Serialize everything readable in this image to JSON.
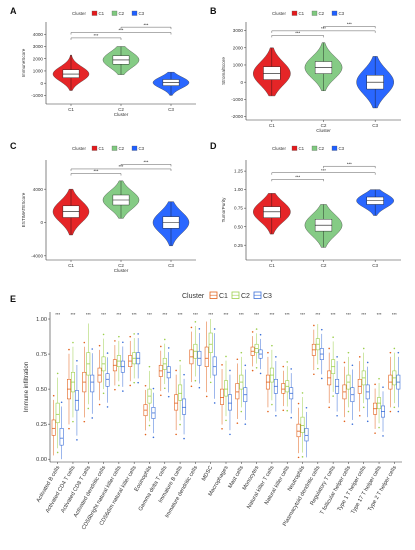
{
  "colors": {
    "C1": "#e41a1c",
    "C2": "#7fc97f",
    "C3": "#1f5fff",
    "C1_box": "#e2611b",
    "C2_box": "#9ccf4d",
    "C3_box": "#3b6fd8"
  },
  "chart_data": [
    {
      "panel": "A",
      "type": "violin",
      "legend_title": "Cluster",
      "legend_items": [
        "C1",
        "C2",
        "C3"
      ],
      "categories": [
        "C1",
        "C2",
        "C3"
      ],
      "xlabel": "Cluster",
      "ylabel": "ImmuneScore",
      "ylim": [
        -1700,
        5000
      ],
      "yticks": [
        -1000,
        0,
        1000,
        2000,
        3000,
        4000
      ],
      "series": [
        {
          "name": "C1",
          "median": 750,
          "q1": 450,
          "q3": 1100,
          "min": -600,
          "max": 2300
        },
        {
          "name": "C2",
          "median": 1900,
          "q1": 1550,
          "q3": 2250,
          "min": 700,
          "max": 3000
        },
        {
          "name": "C3",
          "median": 50,
          "q1": -200,
          "q3": 300,
          "min": -1000,
          "max": 900
        }
      ],
      "significance": [
        {
          "from": 0,
          "to": 1,
          "label": "***"
        },
        {
          "from": 0,
          "to": 2,
          "label": "***"
        },
        {
          "from": 1,
          "to": 2,
          "label": "***"
        }
      ]
    },
    {
      "panel": "B",
      "type": "violin",
      "legend_title": "Cluster",
      "legend_items": [
        "C1",
        "C2",
        "C3"
      ],
      "categories": [
        "C1",
        "C2",
        "C3"
      ],
      "xlabel": "Cluster",
      "ylabel": "StromalScore",
      "ylim": [
        -2200,
        3500
      ],
      "yticks": [
        -2000,
        -1000,
        0,
        1000,
        2000,
        3000
      ],
      "series": [
        {
          "name": "C1",
          "median": 500,
          "q1": 150,
          "q3": 900,
          "min": -800,
          "max": 2000
        },
        {
          "name": "C2",
          "median": 850,
          "q1": 500,
          "q3": 1200,
          "min": -500,
          "max": 2300
        },
        {
          "name": "C3",
          "median": 0,
          "q1": -400,
          "q3": 400,
          "min": -1500,
          "max": 1500
        }
      ],
      "significance": [
        {
          "from": 0,
          "to": 1,
          "label": "***"
        },
        {
          "from": 0,
          "to": 2,
          "label": "***"
        },
        {
          "from": 1,
          "to": 2,
          "label": "***"
        }
      ]
    },
    {
      "panel": "C",
      "type": "violin",
      "legend_title": "Cluster",
      "legend_items": [
        "C1",
        "C2",
        "C3"
      ],
      "categories": [
        "C1",
        "C2",
        "C3"
      ],
      "xlabel": "Cluster",
      "ylabel": "ESTIMATEScore",
      "ylim": [
        -4500,
        7500
      ],
      "yticks": [
        -4000,
        0,
        4000
      ],
      "series": [
        {
          "name": "C1",
          "median": 1300,
          "q1": 600,
          "q3": 2000,
          "min": -1500,
          "max": 4000
        },
        {
          "name": "C2",
          "median": 2700,
          "q1": 2100,
          "q3": 3300,
          "min": 500,
          "max": 5000
        },
        {
          "name": "C3",
          "median": 0,
          "q1": -700,
          "q3": 700,
          "min": -2800,
          "max": 2500
        }
      ],
      "significance": [
        {
          "from": 0,
          "to": 1,
          "label": "***"
        },
        {
          "from": 0,
          "to": 2,
          "label": "***"
        },
        {
          "from": 1,
          "to": 2,
          "label": "***"
        }
      ]
    },
    {
      "panel": "D",
      "type": "violin",
      "legend_title": "Cluster",
      "legend_items": [
        "C1",
        "C2",
        "C3"
      ],
      "categories": [
        "C1",
        "C2",
        "C3"
      ],
      "xlabel": "",
      "ylabel": "TumorPurity",
      "ylim": [
        0.05,
        1.4
      ],
      "yticks": [
        0.25,
        0.5,
        0.75,
        1.0,
        1.25
      ],
      "ytick_labels": [
        "0.25",
        "0.50",
        "0.75",
        "1.00",
        "1.25"
      ],
      "series": [
        {
          "name": "C1",
          "median": 0.7,
          "q1": 0.62,
          "q3": 0.77,
          "min": 0.4,
          "max": 0.95
        },
        {
          "name": "C2",
          "median": 0.52,
          "q1": 0.44,
          "q3": 0.6,
          "min": 0.22,
          "max": 0.8
        },
        {
          "name": "C3",
          "median": 0.85,
          "q1": 0.8,
          "q3": 0.9,
          "min": 0.65,
          "max": 1.0
        }
      ],
      "significance": [
        {
          "from": 0,
          "to": 1,
          "label": "***"
        },
        {
          "from": 0,
          "to": 2,
          "label": "***"
        },
        {
          "from": 1,
          "to": 2,
          "label": "***"
        }
      ]
    },
    {
      "panel": "E",
      "type": "boxplot",
      "legend_title": "Cluster",
      "legend_items": [
        "C1",
        "C2",
        "C3"
      ],
      "ylabel": "Immune infiltration",
      "ylim": [
        -0.02,
        1.05
      ],
      "yticks": [
        0.0,
        0.25,
        0.5,
        0.75,
        1.0
      ],
      "ytick_labels": [
        "0.00",
        "0.25",
        "0.50",
        "0.75",
        "1.00"
      ],
      "significance_label": "***",
      "categories": [
        "Activated B cells",
        "Activated CD4 T cells",
        "Activated CD8 T cells",
        "Activated dendritic cells",
        "CD56bright natural killer cells",
        "CD56dim natural killer cells",
        "Eosinophils",
        "Gamma delta T cells",
        "Immature B cells",
        "Immature dendritic cells",
        "MDSC",
        "Macrophages",
        "Mast cells",
        "Monocytes",
        "Natural killer T cells",
        "Natural killer cells",
        "Neutrophils",
        "Plasmacytoid dendritic cells",
        "Regulatory T cells",
        "T follicular helper cells",
        "Type 1 T helper cells",
        "Type 17 T helper cells",
        "Type 2 T helper cells"
      ],
      "values": [
        [
          [
            0.22,
            0.17,
            0.28
          ],
          [
            0.32,
            0.26,
            0.4
          ],
          [
            0.15,
            0.1,
            0.22
          ]
        ],
        [
          [
            0.5,
            0.43,
            0.57
          ],
          [
            0.55,
            0.48,
            0.62
          ],
          [
            0.42,
            0.35,
            0.49
          ]
        ],
        [
          [
            0.55,
            0.48,
            0.62
          ],
          [
            0.68,
            0.6,
            0.76
          ],
          [
            0.55,
            0.48,
            0.6
          ]
        ],
        [
          [
            0.6,
            0.55,
            0.65
          ],
          [
            0.68,
            0.63,
            0.73
          ],
          [
            0.57,
            0.52,
            0.61
          ]
        ],
        [
          [
            0.67,
            0.63,
            0.71
          ],
          [
            0.7,
            0.66,
            0.74
          ],
          [
            0.66,
            0.62,
            0.7
          ]
        ],
        [
          [
            0.7,
            0.66,
            0.74
          ],
          [
            0.72,
            0.68,
            0.76
          ],
          [
            0.72,
            0.68,
            0.76
          ]
        ],
        [
          [
            0.35,
            0.31,
            0.39
          ],
          [
            0.45,
            0.4,
            0.5
          ],
          [
            0.33,
            0.29,
            0.37
          ]
        ],
        [
          [
            0.63,
            0.59,
            0.67
          ],
          [
            0.68,
            0.64,
            0.72
          ],
          [
            0.62,
            0.58,
            0.66
          ]
        ],
        [
          [
            0.4,
            0.35,
            0.46
          ],
          [
            0.47,
            0.42,
            0.53
          ],
          [
            0.37,
            0.32,
            0.43
          ]
        ],
        [
          [
            0.73,
            0.68,
            0.78
          ],
          [
            0.77,
            0.72,
            0.82
          ],
          [
            0.72,
            0.67,
            0.77
          ]
        ],
        [
          [
            0.72,
            0.66,
            0.8
          ],
          [
            0.82,
            0.76,
            0.9
          ],
          [
            0.66,
            0.6,
            0.73
          ]
        ],
        [
          [
            0.44,
            0.39,
            0.5
          ],
          [
            0.5,
            0.45,
            0.56
          ],
          [
            0.4,
            0.35,
            0.46
          ]
        ],
        [
          [
            0.48,
            0.43,
            0.54
          ],
          [
            0.55,
            0.5,
            0.6
          ],
          [
            0.46,
            0.41,
            0.51
          ]
        ],
        [
          [
            0.77,
            0.74,
            0.8
          ],
          [
            0.79,
            0.76,
            0.82
          ],
          [
            0.75,
            0.72,
            0.78
          ]
        ],
        [
          [
            0.55,
            0.5,
            0.6
          ],
          [
            0.6,
            0.55,
            0.65
          ],
          [
            0.52,
            0.47,
            0.57
          ]
        ],
        [
          [
            0.5,
            0.47,
            0.54
          ],
          [
            0.52,
            0.48,
            0.56
          ],
          [
            0.47,
            0.43,
            0.51
          ]
        ],
        [
          [
            0.2,
            0.16,
            0.25
          ],
          [
            0.24,
            0.19,
            0.3
          ],
          [
            0.17,
            0.13,
            0.22
          ]
        ],
        [
          [
            0.78,
            0.74,
            0.82
          ],
          [
            0.82,
            0.78,
            0.86
          ],
          [
            0.75,
            0.71,
            0.79
          ]
        ],
        [
          [
            0.58,
            0.53,
            0.63
          ],
          [
            0.66,
            0.61,
            0.71
          ],
          [
            0.52,
            0.47,
            0.57
          ]
        ],
        [
          [
            0.48,
            0.43,
            0.53
          ],
          [
            0.55,
            0.5,
            0.6
          ],
          [
            0.46,
            0.41,
            0.51
          ]
        ],
        [
          [
            0.52,
            0.47,
            0.57
          ],
          [
            0.58,
            0.53,
            0.63
          ],
          [
            0.48,
            0.43,
            0.53
          ]
        ],
        [
          [
            0.36,
            0.32,
            0.4
          ],
          [
            0.4,
            0.36,
            0.44
          ],
          [
            0.34,
            0.3,
            0.38
          ]
        ],
        [
          [
            0.55,
            0.5,
            0.6
          ],
          [
            0.58,
            0.53,
            0.63
          ],
          [
            0.55,
            0.5,
            0.6
          ]
        ]
      ]
    }
  ]
}
